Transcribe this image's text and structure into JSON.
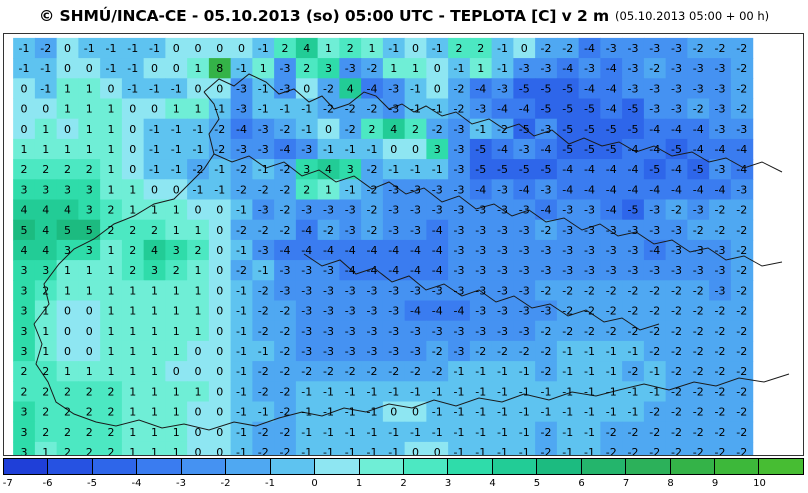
{
  "header": {
    "title": "© SHMÚ/INCA-CE - 05.10.2013 (so) 05:00 UTC - TEPLOTA [C] v 2 m",
    "subtitle": "(05.10.2013 05:00 + 00 h)"
  },
  "map": {
    "variable": "temperature 2 m",
    "unit": "C",
    "grid_values": [
      [
        -1,
        -2,
        0,
        -1,
        -1,
        -1,
        -1,
        0,
        0,
        0,
        0,
        -1,
        2,
        4,
        1,
        2,
        1,
        -1,
        0,
        -1,
        2,
        2,
        -1,
        0,
        -2,
        -2,
        -4,
        -3,
        -3,
        -3,
        -3,
        -2,
        -2,
        -2
      ],
      [
        -1,
        -1,
        0,
        0,
        -1,
        -1,
        0,
        0,
        1,
        8,
        -1,
        1,
        -3,
        2,
        3,
        -3,
        -2,
        1,
        1,
        0,
        -1,
        1,
        -1,
        -3,
        -3,
        -4,
        -3,
        -4,
        -3,
        -2,
        -3,
        -3,
        -3,
        -2
      ],
      [
        0,
        -1,
        1,
        1,
        0,
        -1,
        -1,
        -1,
        0,
        0,
        -3,
        -1,
        -3,
        0,
        -2,
        4,
        -4,
        -3,
        -1,
        0,
        -2,
        -4,
        -3,
        -5,
        -5,
        -5,
        -4,
        -4,
        -3,
        -3,
        -3,
        -3,
        -3,
        -2
      ],
      [
        0,
        0,
        1,
        1,
        1,
        0,
        0,
        1,
        1,
        -1,
        -3,
        -1,
        -1,
        -1,
        -2,
        -2,
        -2,
        -3,
        -1,
        -1,
        -2,
        -3,
        -4,
        -4,
        -5,
        -5,
        -5,
        -4,
        -5,
        -3,
        -3,
        -2,
        -3,
        -2
      ],
      [
        0,
        1,
        0,
        1,
        1,
        0,
        -1,
        -1,
        -1,
        -2,
        -4,
        -3,
        -2,
        -1,
        0,
        -2,
        2,
        4,
        2,
        -2,
        -3,
        -1,
        -2,
        -5,
        -3,
        -5,
        -5,
        -5,
        -5,
        -4,
        -4,
        -4,
        -3,
        -3
      ],
      [
        1,
        1,
        1,
        1,
        1,
        0,
        -1,
        -1,
        -1,
        -2,
        -3,
        -3,
        -4,
        -3,
        -1,
        -1,
        -1,
        0,
        0,
        3,
        -3,
        -5,
        -4,
        -3,
        -4,
        -5,
        -5,
        -5,
        -4,
        -4,
        -5,
        -4,
        -4,
        -4
      ],
      [
        2,
        2,
        2,
        2,
        1,
        0,
        -1,
        -1,
        -2,
        -1,
        -2,
        -1,
        -2,
        3,
        4,
        3,
        -2,
        -1,
        -1,
        -1,
        -3,
        -5,
        -5,
        -5,
        -5,
        -4,
        -4,
        -4,
        -4,
        -5,
        -4,
        -5,
        -3,
        -4
      ],
      [
        3,
        3,
        3,
        3,
        1,
        1,
        0,
        0,
        -1,
        -1,
        -2,
        -2,
        -2,
        2,
        1,
        -1,
        -2,
        -3,
        -3,
        -3,
        -3,
        -4,
        -3,
        -4,
        -3,
        -4,
        -4,
        -4,
        -4,
        -4,
        -4,
        -4,
        -4,
        -3
      ],
      [
        4,
        4,
        4,
        3,
        2,
        1,
        1,
        1,
        0,
        0,
        -1,
        -3,
        -2,
        -3,
        -3,
        -3,
        -2,
        -3,
        -3,
        -3,
        -3,
        -3,
        -3,
        -3,
        -4,
        -3,
        -3,
        -4,
        -5,
        -3,
        -2,
        -3,
        -2,
        -2
      ],
      [
        5,
        4,
        5,
        5,
        2,
        2,
        2,
        1,
        1,
        0,
        -2,
        -2,
        -2,
        -4,
        -2,
        -3,
        -2,
        -3,
        -3,
        -4,
        -3,
        -3,
        -3,
        -3,
        -2,
        -3,
        -3,
        -3,
        -3,
        -3,
        -3,
        -2,
        -2,
        -2
      ],
      [
        4,
        4,
        3,
        3,
        1,
        2,
        4,
        3,
        2,
        0,
        -1,
        -3,
        -4,
        -4,
        -4,
        -4,
        -4,
        -4,
        -4,
        -4,
        -3,
        -3,
        -3,
        -3,
        -3,
        -3,
        -3,
        -3,
        -3,
        -4,
        -3,
        -3,
        -3,
        -2
      ],
      [
        3,
        3,
        1,
        1,
        1,
        2,
        3,
        2,
        1,
        0,
        -2,
        -1,
        -3,
        -3,
        -3,
        -4,
        -4,
        -4,
        -4,
        -4,
        -3,
        -3,
        -3,
        -3,
        -3,
        -3,
        -3,
        -3,
        -3,
        -3,
        -3,
        -3,
        -3,
        -2
      ],
      [
        3,
        2,
        1,
        1,
        1,
        1,
        1,
        1,
        1,
        0,
        -1,
        -2,
        -3,
        -3,
        -3,
        -3,
        -3,
        -3,
        -3,
        -3,
        -3,
        -3,
        -3,
        -3,
        -2,
        -2,
        -2,
        -2,
        -2,
        -2,
        -2,
        -2,
        -3,
        -2
      ],
      [
        3,
        1,
        0,
        0,
        1,
        1,
        1,
        1,
        1,
        0,
        -1,
        -2,
        -2,
        -3,
        -3,
        -3,
        -3,
        -3,
        -4,
        -4,
        -4,
        -3,
        -3,
        -3,
        -3,
        -2,
        -2,
        -2,
        -2,
        -2,
        -2,
        -2,
        -2,
        -2
      ],
      [
        3,
        1,
        0,
        0,
        1,
        1,
        1,
        1,
        1,
        0,
        -1,
        -2,
        -2,
        -3,
        -3,
        -3,
        -3,
        -3,
        -3,
        -3,
        -3,
        -3,
        -3,
        -3,
        -2,
        -2,
        -2,
        -2,
        -2,
        -2,
        -2,
        -2,
        -2,
        -2
      ],
      [
        3,
        1,
        0,
        0,
        1,
        1,
        1,
        1,
        0,
        0,
        -1,
        -1,
        -2,
        -3,
        -3,
        -3,
        -3,
        -3,
        -3,
        -2,
        -3,
        -2,
        -2,
        -2,
        -2,
        -1,
        -1,
        -1,
        -1,
        -2,
        -2,
        -2,
        -2,
        -2
      ],
      [
        2,
        2,
        1,
        1,
        1,
        1,
        1,
        0,
        0,
        0,
        -1,
        -2,
        -2,
        -2,
        -2,
        -2,
        -2,
        -2,
        -2,
        -2,
        -1,
        -1,
        -1,
        -1,
        -2,
        -1,
        -1,
        -1,
        -2,
        -1,
        -2,
        -2,
        -2,
        -2
      ],
      [
        2,
        2,
        2,
        2,
        2,
        1,
        1,
        1,
        1,
        0,
        -1,
        -2,
        -2,
        -1,
        -1,
        -1,
        -1,
        -1,
        -1,
        -1,
        -1,
        -1,
        -1,
        -1,
        -1,
        -1,
        -1,
        -1,
        -1,
        -1,
        -2,
        -2,
        -2,
        -2
      ],
      [
        3,
        2,
        2,
        2,
        2,
        1,
        1,
        1,
        0,
        0,
        -1,
        -1,
        -2,
        -1,
        -1,
        -1,
        -1,
        0,
        0,
        -1,
        -1,
        -1,
        -1,
        -1,
        -1,
        -1,
        -1,
        -1,
        -1,
        -2,
        -2,
        -2,
        -2,
        -2
      ],
      [
        3,
        2,
        2,
        2,
        2,
        1,
        1,
        1,
        0,
        0,
        -1,
        -2,
        -2,
        -1,
        -1,
        -1,
        -1,
        -1,
        -1,
        -1,
        -1,
        -1,
        -1,
        -1,
        -2,
        -1,
        -1,
        -2,
        -2,
        -2,
        -2,
        -2,
        -2,
        -2
      ],
      [
        3,
        1,
        2,
        2,
        2,
        1,
        1,
        1,
        0,
        0,
        -1,
        -2,
        -2,
        -1,
        -1,
        -1,
        -1,
        -1,
        0,
        0,
        -1,
        -1,
        -1,
        -1,
        -2,
        -1,
        -1,
        -2,
        -2,
        -2,
        -2,
        -2,
        -2,
        -2
      ]
    ]
  },
  "legend": {
    "items": [
      {
        "label": "-7",
        "color": "#1f3fd8"
      },
      {
        "label": "-6",
        "color": "#2652e2"
      },
      {
        "label": "-5",
        "color": "#2e66ea"
      },
      {
        "label": "-4",
        "color": "#3a7cf0"
      },
      {
        "label": "-3",
        "color": "#4592f2"
      },
      {
        "label": "-2",
        "color": "#4fa8f2"
      },
      {
        "label": "-1",
        "color": "#5ec3f0"
      },
      {
        "label": "0",
        "color": "#8ee6f2"
      },
      {
        "label": "1",
        "color": "#6feed6"
      },
      {
        "label": "2",
        "color": "#4ce8c2"
      },
      {
        "label": "3",
        "color": "#2fdcaa"
      },
      {
        "label": "4",
        "color": "#22cc96"
      },
      {
        "label": "5",
        "color": "#1cbb80"
      },
      {
        "label": "6",
        "color": "#24b56c"
      },
      {
        "label": "7",
        "color": "#2cb15a"
      },
      {
        "label": "8",
        "color": "#34b348"
      },
      {
        "label": "9",
        "color": "#3db83a"
      },
      {
        "label": "10",
        "color": "#47bd33"
      }
    ]
  }
}
